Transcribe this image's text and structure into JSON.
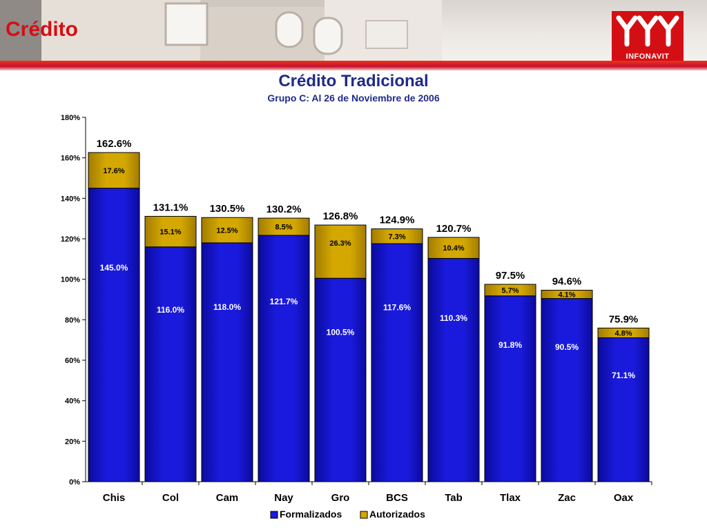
{
  "header": {
    "section_title": "Crédito",
    "logo_text": "INFONAVIT"
  },
  "colors": {
    "brand_red": "#d40f14",
    "formalizados": "#1a1adc",
    "autorizados": "#d4a800",
    "title_blue": "#1f2a8a"
  },
  "chart_data": {
    "type": "bar",
    "stacked": true,
    "title": "Crédito Tradicional",
    "subtitle": "Grupo C: Al 26 de Noviembre de 2006",
    "xlabel": "",
    "ylabel": "",
    "ylim": [
      0,
      180
    ],
    "yticks": [
      "0%",
      "20%",
      "40%",
      "60%",
      "80%",
      "100%",
      "120%",
      "140%",
      "160%",
      "180%"
    ],
    "ytick_values": [
      0,
      20,
      40,
      60,
      80,
      100,
      120,
      140,
      160,
      180
    ],
    "categories": [
      "Chis",
      "Col",
      "Cam",
      "Nay",
      "Gro",
      "BCS",
      "Tab",
      "Tlax",
      "Zac",
      "Oax"
    ],
    "series": [
      {
        "name": "Formalizados",
        "values": [
          145.0,
          116.0,
          118.0,
          121.7,
          100.5,
          117.6,
          110.3,
          91.8,
          90.5,
          71.1
        ],
        "labels": [
          "145.0%",
          "116.0%",
          "118.0%",
          "121.7%",
          "100.5%",
          "117.6%",
          "110.3%",
          "91.8%",
          "90.5%",
          "71.1%"
        ]
      },
      {
        "name": "Autorizados",
        "values": [
          17.6,
          15.1,
          12.5,
          8.5,
          26.3,
          7.3,
          10.4,
          5.7,
          4.1,
          4.8
        ],
        "labels": [
          "17.6%",
          "15.1%",
          "12.5%",
          "8.5%",
          "26.3%",
          "7.3%",
          "10.4%",
          "5.7%",
          "4.1%",
          "4.8%"
        ]
      }
    ],
    "totals": [
      "162.6%",
      "131.1%",
      "130.5%",
      "130.2%",
      "126.8%",
      "124.9%",
      "120.7%",
      "97.5%",
      "94.6%",
      "75.9%"
    ],
    "legend_position": "bottom",
    "grid": false
  }
}
